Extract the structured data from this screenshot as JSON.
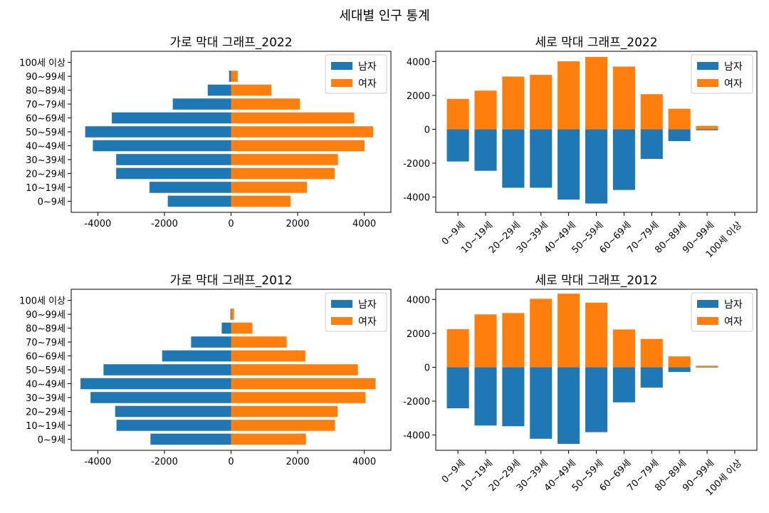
{
  "figure": {
    "suptitle": "세대별 인구 통계"
  },
  "colors": {
    "male": "#1f77b4",
    "female": "#ff7f0e"
  },
  "chart_data": [
    {
      "type": "bar",
      "orientation": "horizontal",
      "title": "가로 막대 그래프_2022",
      "categories": [
        "0~9세",
        "10~19세",
        "20~29세",
        "30~39세",
        "40~49세",
        "50~59세",
        "60~69세",
        "70~79세",
        "80~89세",
        "90~99세",
        "100세 이상"
      ],
      "series": [
        {
          "name": "남자",
          "values": [
            -1900,
            -2450,
            -3450,
            -3450,
            -4150,
            -4380,
            -3580,
            -1750,
            -700,
            -60,
            0
          ]
        },
        {
          "name": "여자",
          "values": [
            1790,
            2280,
            3110,
            3210,
            4010,
            4270,
            3700,
            2070,
            1210,
            200,
            0
          ]
        }
      ],
      "xlim": [
        -4800,
        4800
      ],
      "xticks": [
        -4000,
        -2000,
        0,
        2000,
        4000
      ],
      "legend": "top-right"
    },
    {
      "type": "bar",
      "orientation": "vertical",
      "title": "세로 막대 그래프_2022",
      "categories": [
        "0~9세",
        "10~19세",
        "20~29세",
        "30~39세",
        "40~49세",
        "50~59세",
        "60~69세",
        "70~79세",
        "80~89세",
        "90~99세",
        "100세 이상"
      ],
      "series": [
        {
          "name": "남자",
          "values": [
            -1900,
            -2450,
            -3450,
            -3450,
            -4150,
            -4380,
            -3580,
            -1750,
            -700,
            -60,
            0
          ]
        },
        {
          "name": "여자",
          "values": [
            1790,
            2280,
            3110,
            3210,
            4010,
            4270,
            3700,
            2070,
            1210,
            200,
            0
          ]
        }
      ],
      "ylim": [
        -4900,
        4600
      ],
      "yticks": [
        -4000,
        -2000,
        0,
        2000,
        4000
      ],
      "legend": "top-right"
    },
    {
      "type": "bar",
      "orientation": "horizontal",
      "title": "가로 막대 그래프_2012",
      "categories": [
        "0~9세",
        "10~19세",
        "20~29세",
        "30~39세",
        "40~49세",
        "50~59세",
        "60~69세",
        "70~79세",
        "80~89세",
        "90~99세",
        "100세 이상"
      ],
      "series": [
        {
          "name": "남자",
          "values": [
            -2420,
            -3440,
            -3480,
            -4220,
            -4520,
            -3830,
            -2070,
            -1200,
            -280,
            -20,
            0
          ]
        },
        {
          "name": "여자",
          "values": [
            2250,
            3120,
            3200,
            4040,
            4340,
            3810,
            2230,
            1670,
            640,
            90,
            0
          ]
        }
      ],
      "xlim": [
        -4800,
        4800
      ],
      "xticks": [
        -4000,
        -2000,
        0,
        2000,
        4000
      ],
      "legend": "top-right"
    },
    {
      "type": "bar",
      "orientation": "vertical",
      "title": "세로 막대 그래프_2012",
      "categories": [
        "0~9세",
        "10~19세",
        "20~29세",
        "30~39세",
        "40~49세",
        "50~59세",
        "60~69세",
        "70~79세",
        "80~89세",
        "90~99세",
        "100세 이상"
      ],
      "series": [
        {
          "name": "남자",
          "values": [
            -2420,
            -3440,
            -3480,
            -4220,
            -4520,
            -3830,
            -2070,
            -1200,
            -280,
            -20,
            0
          ]
        },
        {
          "name": "여자",
          "values": [
            2250,
            3120,
            3200,
            4040,
            4340,
            3810,
            2230,
            1670,
            640,
            90,
            0
          ]
        }
      ],
      "ylim": [
        -4900,
        4600
      ],
      "yticks": [
        -4000,
        -2000,
        0,
        2000,
        4000
      ],
      "legend": "top-right"
    }
  ]
}
